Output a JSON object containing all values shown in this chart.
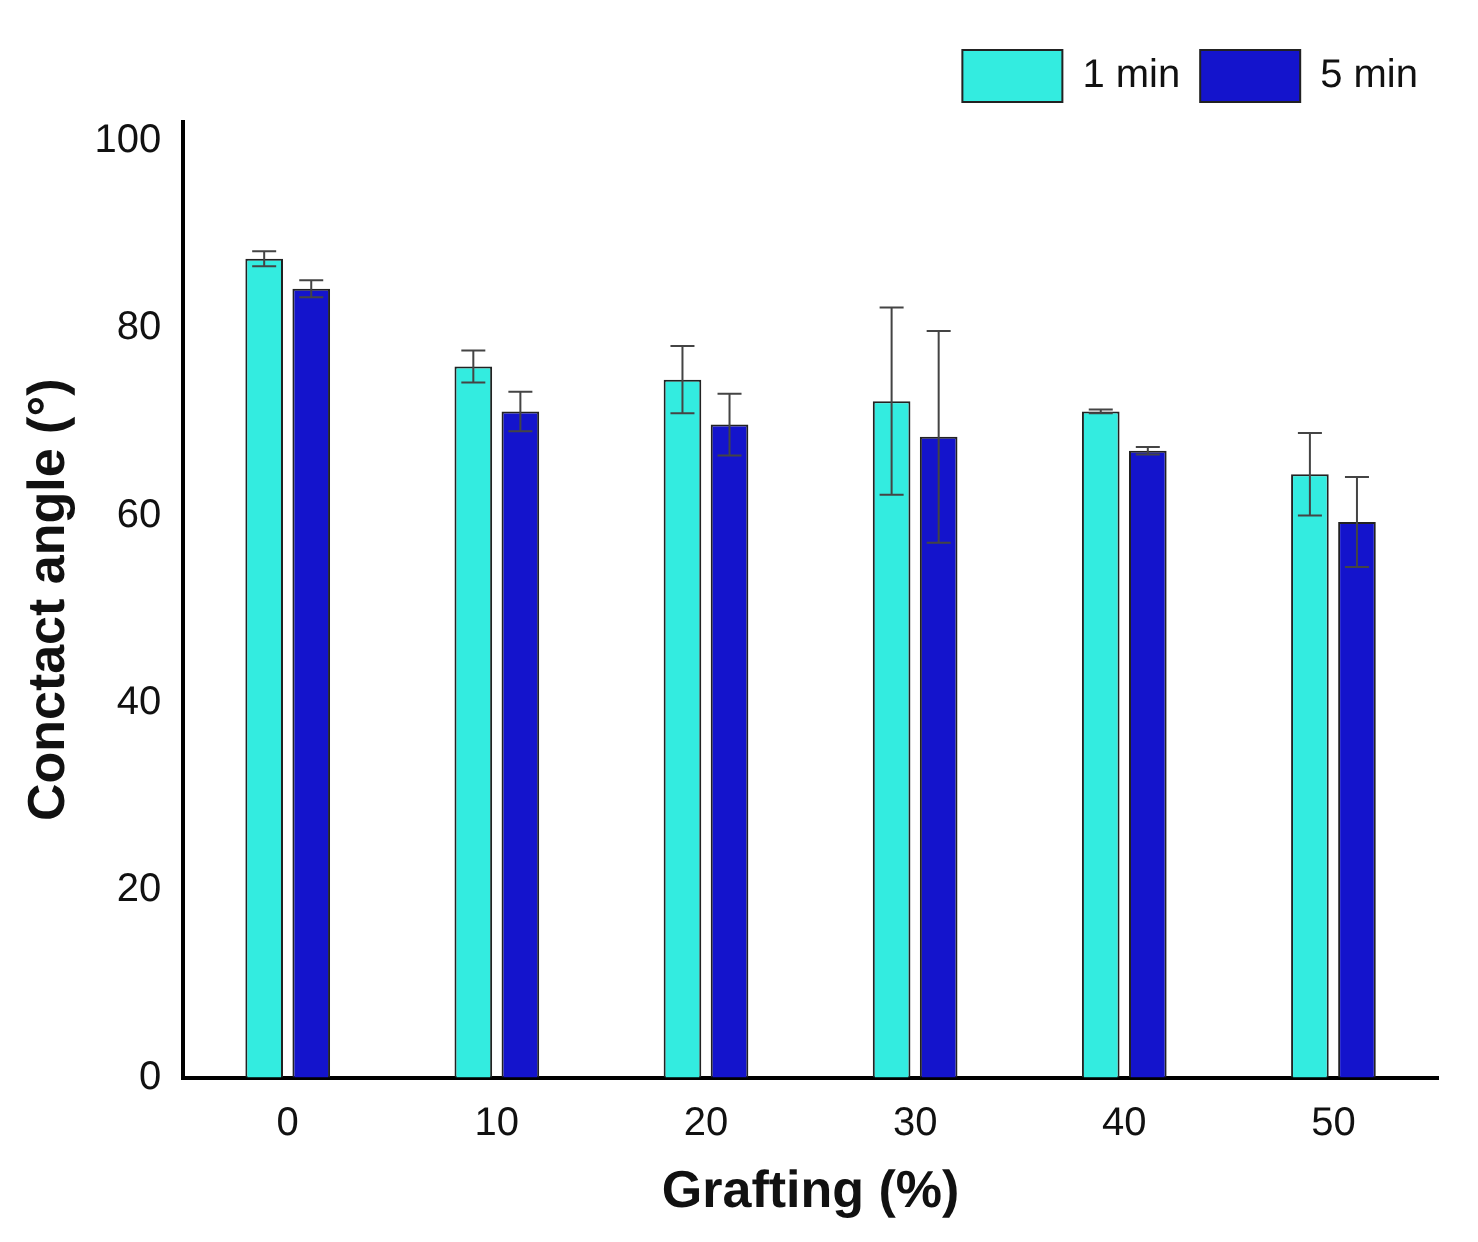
{
  "chart_data": {
    "type": "bar",
    "xlabel": "Grafting (%)",
    "ylabel": "Conctact angle (°)",
    "categories": [
      "0",
      "10",
      "20",
      "30",
      "40",
      "50"
    ],
    "series": [
      {
        "name": "1 min",
        "color": "#33ece0",
        "values": [
          87.4,
          75.9,
          74.5,
          72.2,
          71.1,
          64.4
        ],
        "errors": [
          0.8,
          1.7,
          3.6,
          10,
          0.2,
          4.4
        ]
      },
      {
        "name": "5 min",
        "color": "#1414cc",
        "values": [
          84.2,
          71.1,
          69.7,
          68.4,
          66.9,
          59.3
        ],
        "errors": [
          0.9,
          2.1,
          3.3,
          11.3,
          0.4,
          4.8
        ]
      }
    ],
    "ylim": [
      0,
      102
    ],
    "yticks": [
      0,
      20,
      40,
      60,
      80,
      100
    ],
    "grid": false,
    "legend": "top right"
  }
}
